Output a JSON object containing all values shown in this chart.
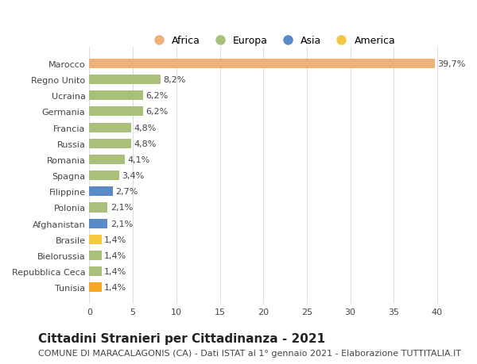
{
  "categories": [
    "Tunisia",
    "Repubblica Ceca",
    "Bielorussia",
    "Brasile",
    "Afghanistan",
    "Polonia",
    "Filippine",
    "Spagna",
    "Romania",
    "Russia",
    "Francia",
    "Germania",
    "Ucraina",
    "Regno Unito",
    "Marocco"
  ],
  "values": [
    1.4,
    1.4,
    1.4,
    1.4,
    2.1,
    2.1,
    2.7,
    3.4,
    4.1,
    4.8,
    4.8,
    6.2,
    6.2,
    8.2,
    39.7
  ],
  "colors": [
    "#f5a623",
    "#a8c07a",
    "#a8c07a",
    "#f5c842",
    "#5b8ac9",
    "#a8c07a",
    "#5b8ac9",
    "#a8c07a",
    "#a8c07a",
    "#a8c07a",
    "#a8c07a",
    "#a8c07a",
    "#a8c07a",
    "#a8c07a",
    "#f0b07a"
  ],
  "labels": [
    "1,4%",
    "1,4%",
    "1,4%",
    "1,4%",
    "2,1%",
    "2,1%",
    "2,7%",
    "3,4%",
    "4,1%",
    "4,8%",
    "4,8%",
    "6,2%",
    "6,2%",
    "8,2%",
    "39,7%"
  ],
  "legend": [
    "Africa",
    "Europa",
    "Asia",
    "America"
  ],
  "legend_colors": [
    "#f0b07a",
    "#a8c07a",
    "#5b8ac9",
    "#f5c842"
  ],
  "xlim": [
    0,
    42
  ],
  "xticks": [
    0,
    5,
    10,
    15,
    20,
    25,
    30,
    35,
    40
  ],
  "title": "Cittadini Stranieri per Cittadinanza - 2021",
  "subtitle": "COMUNE DI MARACALAGONIS (CA) - Dati ISTAT al 1° gennaio 2021 - Elaborazione TUTTITALIA.IT",
  "bar_height": 0.6,
  "background_color": "#ffffff",
  "grid_color": "#dddddd",
  "title_fontsize": 11,
  "subtitle_fontsize": 8,
  "label_fontsize": 8,
  "tick_fontsize": 8,
  "legend_fontsize": 9
}
